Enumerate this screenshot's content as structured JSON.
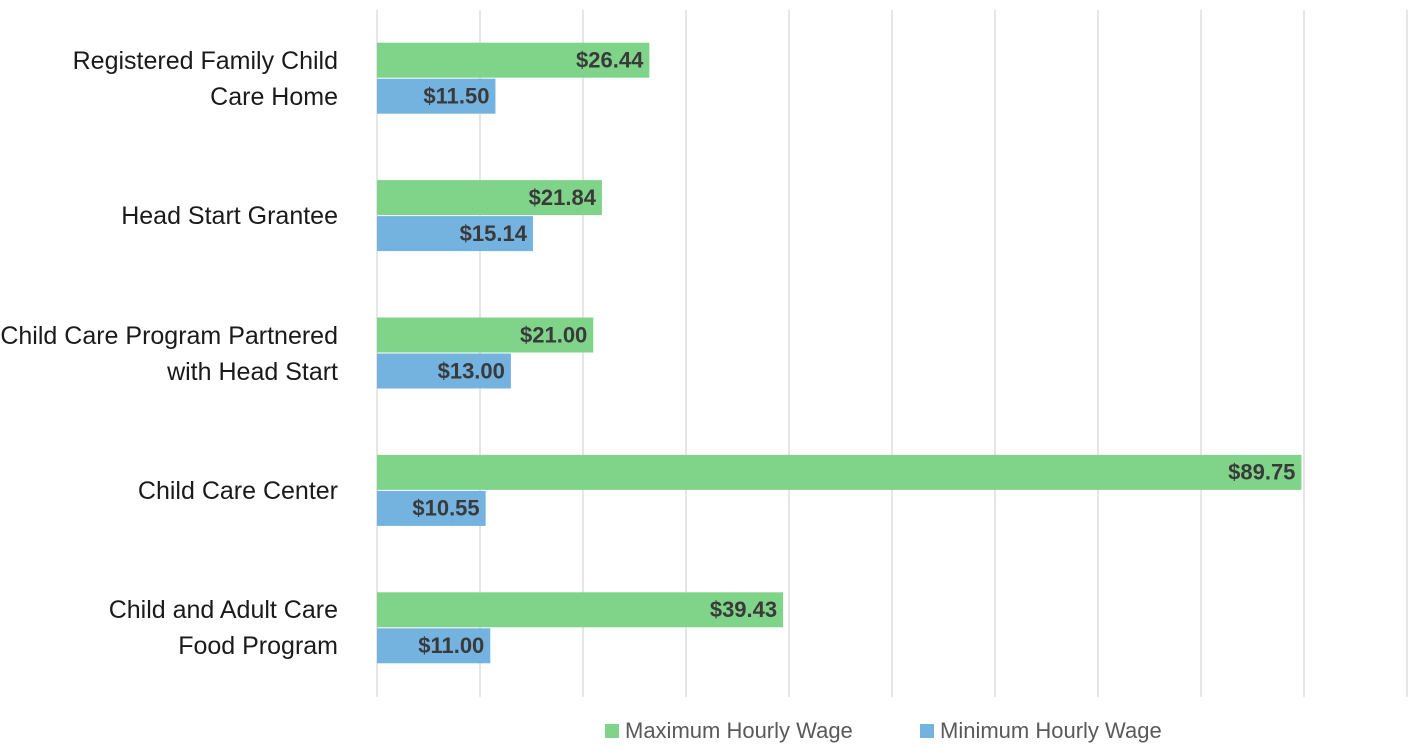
{
  "chart_data": {
    "type": "bar",
    "orientation": "horizontal",
    "categories": [
      "Registered Family Child Care Home",
      "Head Start Grantee",
      "Child Care Program Partnered with Head Start",
      "Child Care Center",
      "Child and Adult Care Food Program"
    ],
    "series": [
      {
        "name": "Maximum Hourly Wage",
        "color": "#7fd48a",
        "values": [
          26.44,
          21.84,
          21.0,
          89.75,
          39.43
        ],
        "value_labels": [
          "$26.44",
          "$21.84",
          "$21.00",
          "$89.75",
          "$39.43"
        ]
      },
      {
        "name": "Minimum Hourly Wage",
        "color": "#74b3e0",
        "values": [
          11.5,
          15.14,
          13.0,
          10.55,
          11.0
        ],
        "value_labels": [
          "$11.50",
          "$15.14",
          "$13.00",
          "$10.55",
          "$11.00"
        ]
      }
    ],
    "xlim": [
      0,
      100
    ],
    "xticks": [
      0,
      10,
      20,
      30,
      40,
      50,
      60,
      70,
      80,
      90,
      100
    ],
    "grid": true,
    "legend": "bottom"
  }
}
